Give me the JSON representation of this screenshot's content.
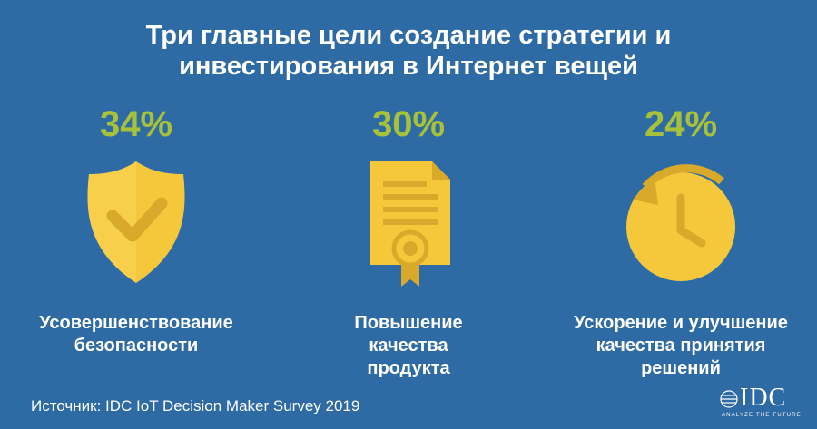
{
  "title": {
    "line1": "Три главные цели создание стратегии и",
    "line2": "инвестирования  в Интернет вещей"
  },
  "items": [
    {
      "percent": "34%",
      "icon": "shield-check-icon",
      "label_lines": [
        "Усовершенствование",
        "безопасности"
      ]
    },
    {
      "percent": "30%",
      "icon": "certificate-document-icon",
      "label_lines": [
        "Повышение",
        "качества",
        "продукта"
      ]
    },
    {
      "percent": "24%",
      "icon": "clock-refresh-icon",
      "label_lines": [
        "Ускорение и улучшение",
        "качества принятия",
        "решений"
      ]
    }
  ],
  "source": "Источник: IDC IoT Decision Maker Survey 2019",
  "logo": {
    "name": "IDC",
    "tagline": "ANALYZE THE FUTURE"
  },
  "colors": {
    "background": "#2e6aa3",
    "percent": "#a8c13a",
    "icon_main": "#f5c83c",
    "icon_shade": "#d8a92b",
    "text": "#ffffff"
  }
}
